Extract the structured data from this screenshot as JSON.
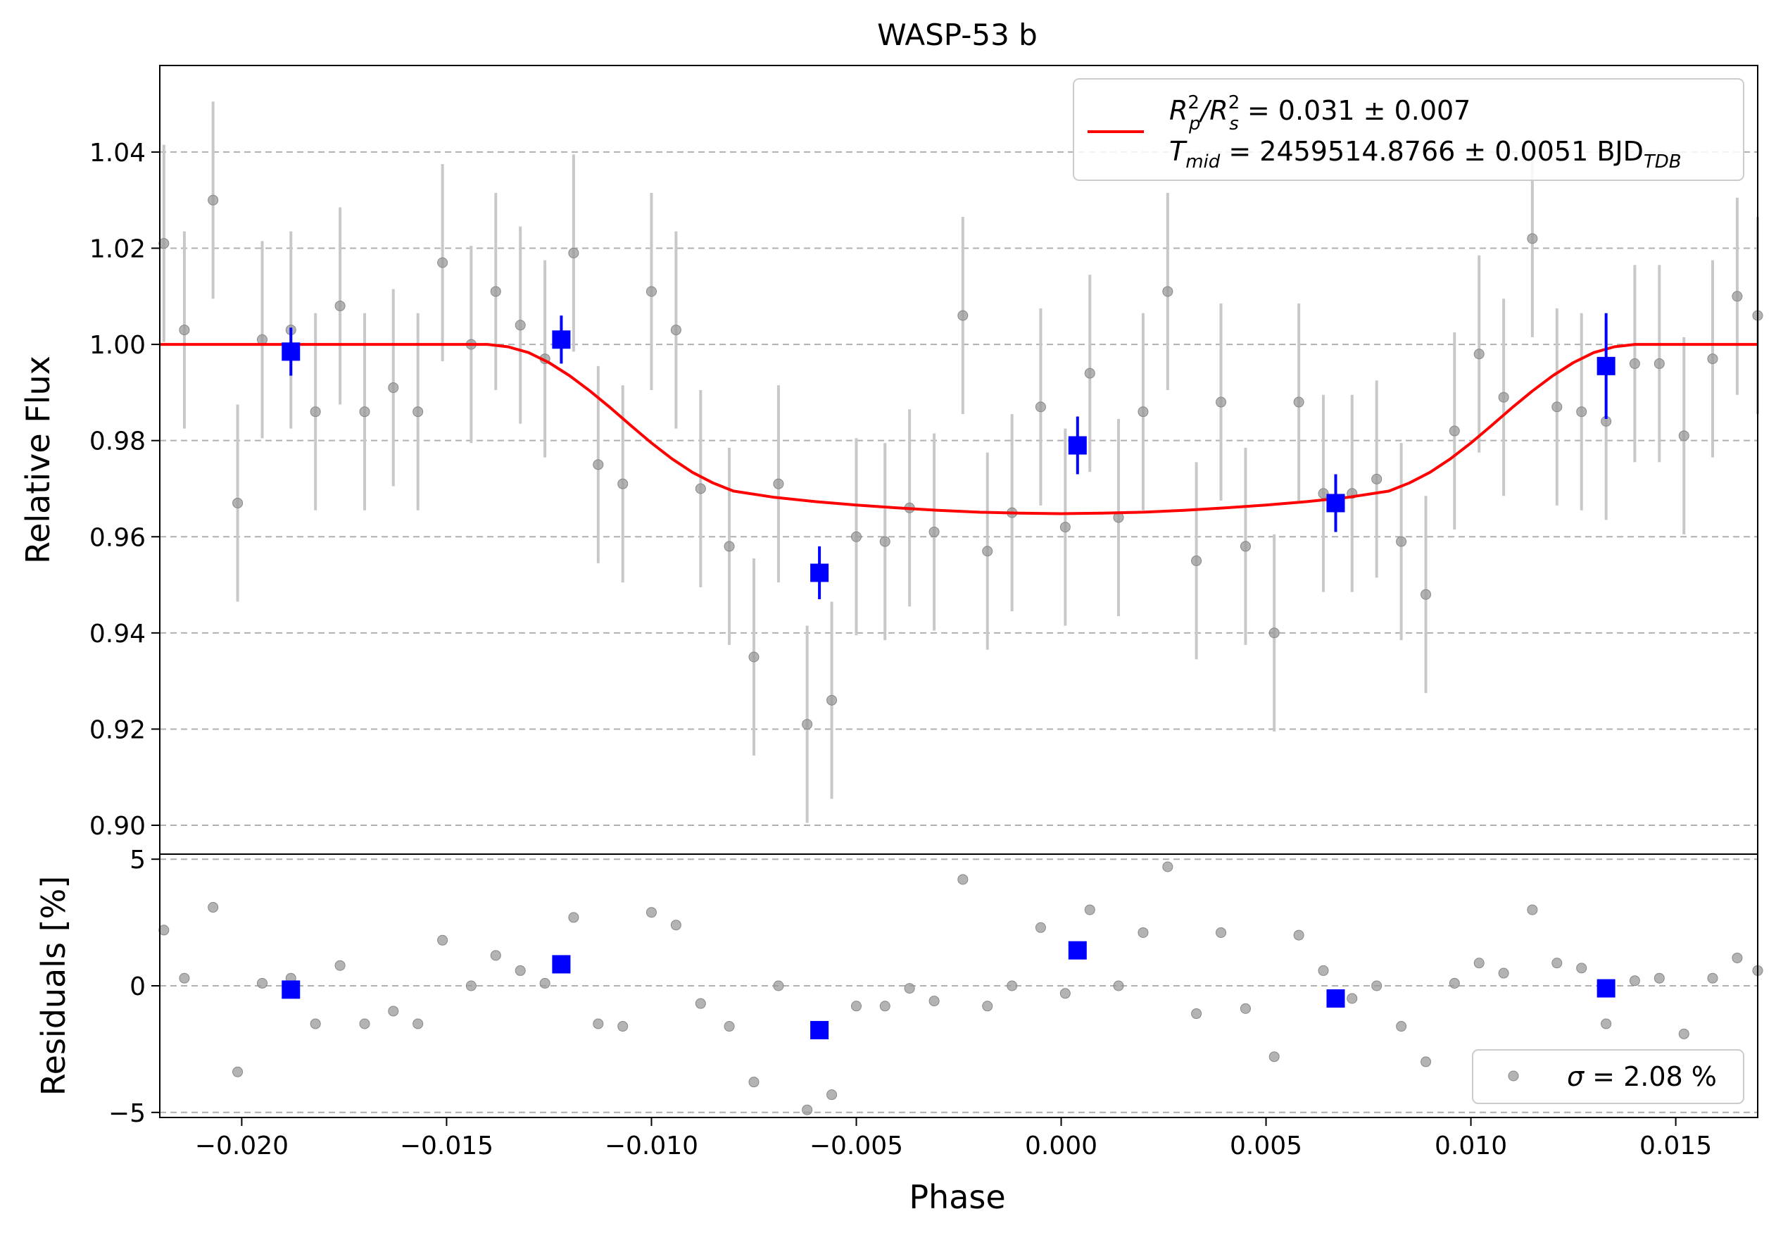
{
  "title": "WASP-53 b",
  "colors": {
    "model": "#ff0000",
    "binned": "#0000ff",
    "raw": "#999999",
    "errorbar": "#c8c8c8",
    "grid": "#b0b0b0"
  },
  "chart_data": [
    {
      "panel": "top",
      "type": "scatter",
      "title": "WASP-53 b",
      "xlabel": "",
      "ylabel": "Relative Flux",
      "xlim": [
        -0.022,
        0.017
      ],
      "ylim": [
        0.894,
        1.058
      ],
      "yticks": [
        0.9,
        0.92,
        0.94,
        0.96,
        0.98,
        1.0,
        1.02,
        1.04
      ],
      "ytick_labels": [
        "0.90",
        "0.92",
        "0.94",
        "0.96",
        "0.98",
        "1.00",
        "1.02",
        "1.04"
      ],
      "grid": "horizontal dashed",
      "legend_position": "top-right",
      "legend": {
        "line1": {
          "pre": "R",
          "sub1": "p",
          "sup1": "2",
          "mid": "/R",
          "sub2": "s",
          "sup2": "2",
          "post": " = 0.031 ± 0.007"
        },
        "line2": {
          "pre": "T",
          "sub1": "mid",
          "post": " = 2459514.8766 ± 0.0051 BJD",
          "sub2": "TDB"
        }
      },
      "raw_data": {
        "x": [
          -0.0219,
          -0.0214,
          -0.0207,
          -0.0201,
          -0.0195,
          -0.0188,
          -0.0182,
          -0.0176,
          -0.017,
          -0.0163,
          -0.0157,
          -0.0151,
          -0.0144,
          -0.0138,
          -0.0132,
          -0.0126,
          -0.0119,
          -0.0113,
          -0.0107,
          -0.01,
          -0.0094,
          -0.0088,
          -0.0081,
          -0.0075,
          -0.0069,
          -0.0062,
          -0.0056,
          -0.005,
          -0.0043,
          -0.0037,
          -0.0031,
          -0.0024,
          -0.0018,
          -0.0012,
          -0.0005,
          0.0001,
          0.0007,
          0.0014,
          0.002,
          0.0026,
          0.0033,
          0.0039,
          0.0045,
          0.0052,
          0.0058,
          0.0064,
          0.0071,
          0.0077,
          0.0083,
          0.0089,
          0.0096,
          0.0102,
          0.0108,
          0.0115,
          0.0121,
          0.0127,
          0.0133,
          0.014,
          0.0146,
          0.0152,
          0.0159,
          0.0165,
          0.017
        ],
        "y": [
          1.021,
          1.003,
          1.03,
          0.967,
          1.001,
          1.003,
          0.986,
          1.008,
          0.986,
          0.991,
          0.986,
          1.017,
          1.0,
          1.011,
          1.004,
          0.997,
          1.019,
          0.975,
          0.971,
          1.011,
          1.003,
          0.97,
          0.958,
          0.935,
          0.971,
          0.921,
          0.926,
          0.96,
          0.959,
          0.966,
          0.961,
          1.006,
          0.957,
          0.965,
          0.987,
          0.962,
          0.994,
          0.964,
          0.986,
          1.011,
          0.955,
          0.988,
          0.958,
          0.94,
          0.988,
          0.969,
          0.969,
          0.972,
          0.959,
          0.948,
          0.982,
          0.998,
          0.989,
          1.022,
          0.987,
          0.986,
          0.984,
          0.996,
          0.996,
          0.981,
          0.997,
          1.01,
          1.006
        ],
        "yerr": 0.0205
      },
      "binned_data": {
        "x": [
          -0.0188,
          -0.0122,
          -0.0059,
          0.0004,
          0.0067,
          0.0133
        ],
        "y": [
          0.9985,
          1.001,
          0.9525,
          0.979,
          0.967,
          0.9955
        ],
        "yerr": [
          0.005,
          0.005,
          0.0055,
          0.006,
          0.006,
          0.011
        ]
      },
      "model": {
        "x": [
          -0.022,
          -0.0145,
          -0.014,
          -0.0135,
          -0.013,
          -0.0125,
          -0.012,
          -0.0115,
          -0.011,
          -0.0105,
          -0.01,
          -0.0095,
          -0.009,
          -0.0085,
          -0.008,
          -0.007,
          -0.006,
          -0.005,
          -0.004,
          -0.003,
          -0.002,
          -0.001,
          0.0,
          0.001,
          0.002,
          0.003,
          0.004,
          0.005,
          0.006,
          0.007,
          0.008,
          0.0085,
          0.009,
          0.0095,
          0.01,
          0.0105,
          0.011,
          0.0115,
          0.012,
          0.0125,
          0.013,
          0.0135,
          0.014,
          0.0145,
          0.017
        ],
        "y": [
          1.0,
          1.0,
          1.0,
          0.9995,
          0.9983,
          0.9962,
          0.9935,
          0.9903,
          0.9868,
          0.9831,
          0.9795,
          0.9762,
          0.9734,
          0.9712,
          0.9695,
          0.9682,
          0.9673,
          0.9666,
          0.966,
          0.9655,
          0.9651,
          0.9649,
          0.9648,
          0.9649,
          0.9651,
          0.9655,
          0.966,
          0.9666,
          0.9673,
          0.9682,
          0.9695,
          0.9712,
          0.9734,
          0.9762,
          0.9795,
          0.9831,
          0.9868,
          0.9903,
          0.9935,
          0.9962,
          0.9983,
          0.9995,
          1.0,
          1.0,
          1.0
        ]
      }
    },
    {
      "panel": "bottom",
      "type": "scatter",
      "xlabel": "Phase",
      "ylabel": "Residuals [%]",
      "xlim": [
        -0.022,
        0.017
      ],
      "ylim": [
        -5.2,
        5.2
      ],
      "yticks": [
        -5,
        0,
        5
      ],
      "ytick_labels": [
        "−5",
        "0",
        "5"
      ],
      "xticks": [
        -0.02,
        -0.015,
        -0.01,
        -0.005,
        0.0,
        0.005,
        0.01,
        0.015
      ],
      "xtick_labels": [
        "−0.020",
        "−0.015",
        "−0.010",
        "−0.005",
        "0.000",
        "0.005",
        "0.010",
        "0.015"
      ],
      "grid": "horizontal dashed",
      "legend_position": "bottom-right",
      "legend": {
        "symbol": "σ",
        "text": " = 2.08 %"
      },
      "raw_data": {
        "x": [
          -0.0219,
          -0.0214,
          -0.0207,
          -0.0201,
          -0.0195,
          -0.0188,
          -0.0182,
          -0.0176,
          -0.017,
          -0.0163,
          -0.0157,
          -0.0151,
          -0.0144,
          -0.0138,
          -0.0132,
          -0.0126,
          -0.0119,
          -0.0113,
          -0.0107,
          -0.01,
          -0.0094,
          -0.0088,
          -0.0081,
          -0.0075,
          -0.0069,
          -0.0062,
          -0.0056,
          -0.005,
          -0.0043,
          -0.0037,
          -0.0031,
          -0.0024,
          -0.0018,
          -0.0012,
          -0.0005,
          0.0001,
          0.0007,
          0.0014,
          0.002,
          0.0026,
          0.0033,
          0.0039,
          0.0045,
          0.0052,
          0.0058,
          0.0064,
          0.0071,
          0.0077,
          0.0083,
          0.0089,
          0.0096,
          0.0102,
          0.0108,
          0.0115,
          0.0121,
          0.0127,
          0.0133,
          0.014,
          0.0146,
          0.0152,
          0.0159,
          0.0165,
          0.017
        ],
        "y": [
          2.2,
          0.3,
          3.1,
          -3.4,
          0.1,
          0.3,
          -1.5,
          0.8,
          -1.5,
          -1.0,
          -1.5,
          1.8,
          0.0,
          1.2,
          0.6,
          0.1,
          2.7,
          -1.5,
          -1.6,
          2.9,
          2.4,
          -0.7,
          -1.6,
          -3.8,
          0.0,
          -4.9,
          -4.3,
          -0.8,
          -0.8,
          -0.1,
          -0.6,
          4.2,
          -0.8,
          0.0,
          2.3,
          -0.3,
          3.0,
          0.0,
          2.1,
          4.7,
          -1.1,
          2.1,
          -0.9,
          -2.8,
          2.0,
          0.6,
          -0.5,
          0.0,
          -1.6,
          -3.0,
          0.1,
          0.9,
          0.5,
          3.0,
          0.9,
          0.7,
          -1.5,
          0.2,
          0.3,
          -1.9,
          0.3,
          1.1,
          0.6
        ]
      },
      "binned_data": {
        "x": [
          -0.0188,
          -0.0122,
          -0.0059,
          0.0004,
          0.0067,
          0.0133
        ],
        "y": [
          -0.15,
          0.85,
          -1.75,
          1.4,
          -0.5,
          -0.1
        ]
      }
    }
  ]
}
